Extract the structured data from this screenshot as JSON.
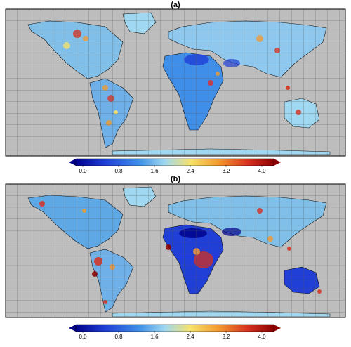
{
  "panels": [
    {
      "label": "(a)",
      "colorbar": {
        "min": 0.0,
        "max": 4.0,
        "ticks": [
          "0.0",
          "0.8",
          "1.6",
          "2.4",
          "3.2",
          "4.0"
        ]
      }
    },
    {
      "label": "(b)",
      "colorbar": {
        "min": 0.0,
        "max": 4.0,
        "ticks": [
          "0.0",
          "0.8",
          "1.6",
          "2.4",
          "3.2",
          "4.0"
        ]
      }
    }
  ],
  "colors": {
    "ocean": "#bdbdbd",
    "grid": "#555555",
    "scale": [
      "#00008b",
      "#1f3fd6",
      "#3f8fe8",
      "#9fd8f0",
      "#f6e26a",
      "#f39a2e",
      "#d7301f",
      "#8b0000"
    ]
  }
}
